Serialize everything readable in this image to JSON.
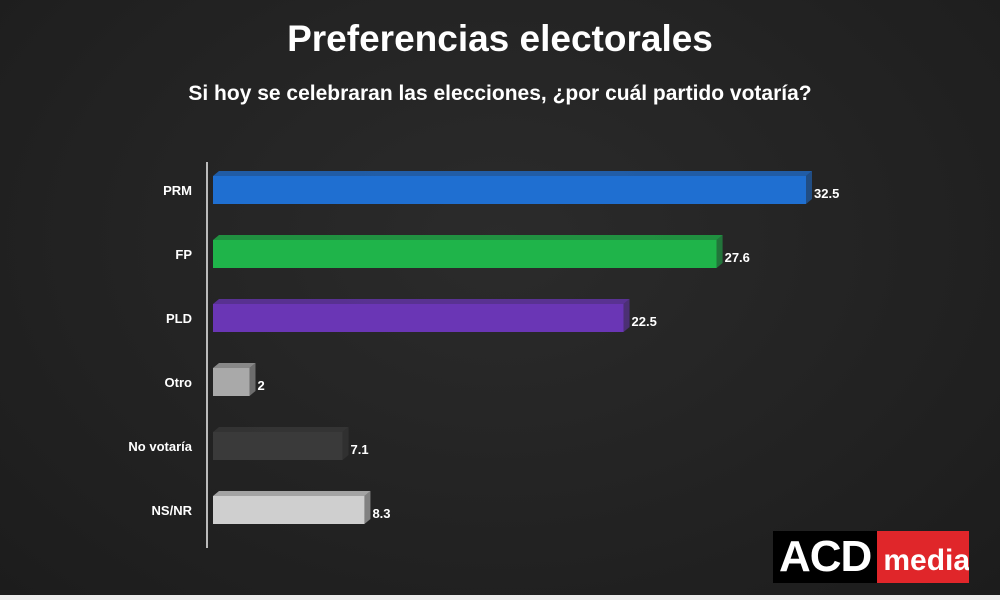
{
  "chart_data": {
    "type": "bar",
    "orientation": "horizontal",
    "title": "Preferencias electorales",
    "subtitle": "Si hoy se celebraran las elecciones, ¿por cuál partido votaría?",
    "categories": [
      "PRM",
      "FP",
      "PLD",
      "Otro",
      "No votaría",
      "NS/NR"
    ],
    "values": [
      32.5,
      27.6,
      22.5,
      2,
      7.1,
      8.3
    ],
    "value_labels": [
      "32.5",
      "27.6",
      "22.5",
      "2",
      "7.1",
      "8.3"
    ],
    "colors": [
      "#1f6fd1",
      "#1fb44a",
      "#6a36b5",
      "#a9a9a9",
      "#3a3a3a",
      "#cfcfcf"
    ],
    "xlabel": "",
    "ylabel": "",
    "xlim": [
      0,
      33
    ],
    "grid": false
  },
  "logo": {
    "left": "ACD",
    "right": "media"
  }
}
